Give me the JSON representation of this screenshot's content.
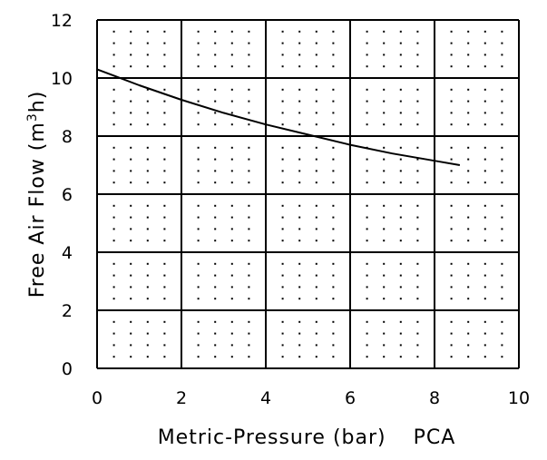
{
  "chart_data": {
    "type": "line",
    "title": "",
    "xlabel": "Metric-Pressure (bar)",
    "xlabel_suffix": "PCA",
    "ylabel": "Free Air Flow (m",
    "ylabel_sup": "3",
    "ylabel_end": "h)",
    "xlim": [
      0,
      10
    ],
    "ylim": [
      0,
      12
    ],
    "x_ticks": [
      "0",
      "2",
      "4",
      "6",
      "8",
      "10"
    ],
    "y_ticks": [
      "0",
      "2",
      "4",
      "6",
      "8",
      "10",
      "12"
    ],
    "grid": true,
    "minor_dots": true,
    "colors": {
      "line": "#000000",
      "grid": "#000000",
      "background": "#ffffff"
    },
    "series": [
      {
        "x": [
          0,
          1,
          2,
          3,
          4,
          5,
          6,
          7,
          8,
          8.6
        ],
        "y": [
          10.3,
          9.75,
          9.25,
          8.8,
          8.4,
          8.05,
          7.7,
          7.4,
          7.15,
          7.0
        ]
      }
    ]
  }
}
